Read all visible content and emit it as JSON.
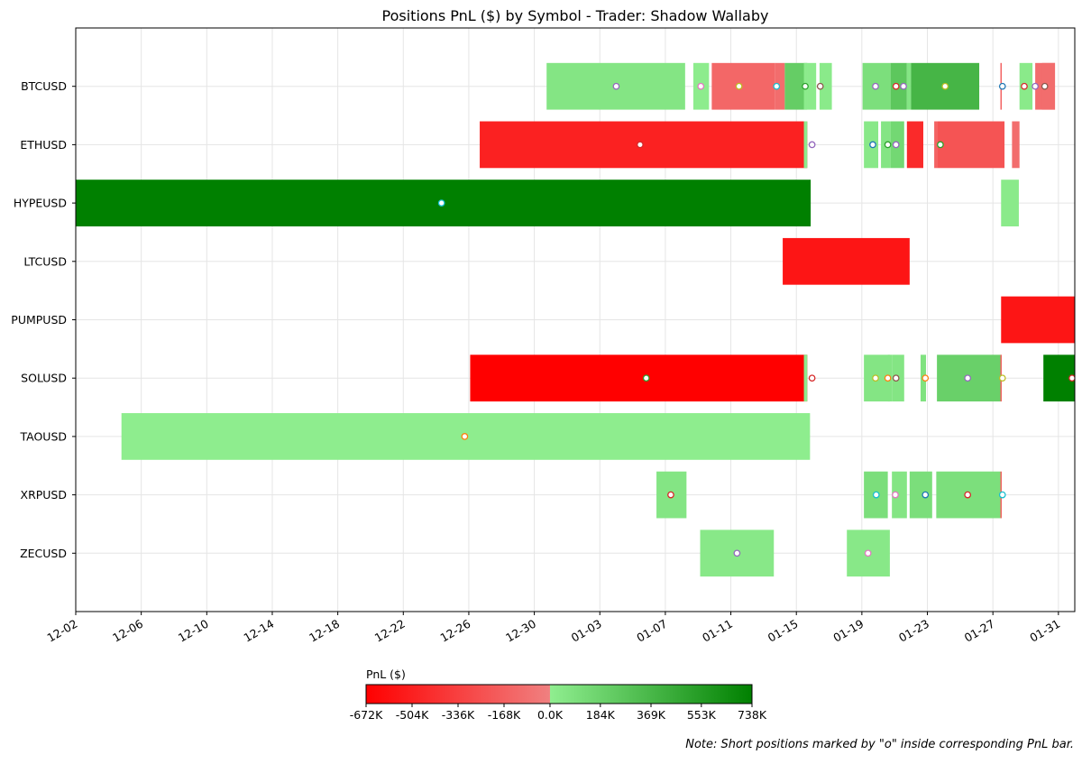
{
  "chart_data": {
    "type": "gantt",
    "title": "Positions PnL ($) by Symbol - Trader: Shadow Wallaby",
    "xlabel": "",
    "ylabel": "",
    "x_axis": {
      "min": "2025-12-02",
      "max": "2026-02-01",
      "tick_labels": [
        "12-02",
        "12-06",
        "12-10",
        "12-14",
        "12-18",
        "12-22",
        "12-26",
        "12-30",
        "01-03",
        "01-07",
        "01-11",
        "01-15",
        "01-19",
        "01-23",
        "01-27",
        "01-31"
      ],
      "tick_dates": [
        "2025-12-02",
        "2025-12-06",
        "2025-12-10",
        "2025-12-14",
        "2025-12-18",
        "2025-12-22",
        "2025-12-26",
        "2025-12-30",
        "2026-01-03",
        "2026-01-07",
        "2026-01-11",
        "2026-01-15",
        "2026-01-19",
        "2026-01-23",
        "2026-01-27",
        "2026-01-31"
      ]
    },
    "grid": true,
    "categories": [
      "BTCUSD",
      "ETHUSD",
      "HYPEUSD",
      "LTCUSD",
      "PUMPUSD",
      "SOLUSD",
      "TAOUSD",
      "XRPUSD",
      "ZECUSD"
    ],
    "colorbar": {
      "label": "PnL ($)",
      "min": -672000,
      "max": 738000,
      "tick_labels": [
        "-672K",
        "-504K",
        "-336K",
        "-168K",
        "0.0K",
        "184K",
        "369K",
        "553K",
        "738K"
      ],
      "tick_values": [
        -672000,
        -504000,
        -336000,
        -168000,
        0,
        184000,
        369000,
        553000,
        738000
      ],
      "neg_colors": [
        "#ff0000",
        "#f08080"
      ],
      "pos_colors": [
        "#90ee90",
        "#008000"
      ]
    },
    "positions": [
      {
        "symbol": "BTCUSD",
        "start": "2025-12-30 18:00",
        "end": "2026-01-08 05:00",
        "pnl": 60000,
        "short": true,
        "marker": "2026-01-04 00:00",
        "marker_color": "#9467bd"
      },
      {
        "symbol": "BTCUSD",
        "start": "2026-01-08 17:00",
        "end": "2026-01-09 16:00",
        "pnl": 15000,
        "short": true,
        "marker": "2026-01-09 04:00",
        "marker_color": "#e377c2"
      },
      {
        "symbol": "BTCUSD",
        "start": "2026-01-09 20:00",
        "end": "2026-01-13 17:00",
        "pnl": -130000,
        "short": true,
        "marker": "2026-01-11 12:00",
        "marker_color": "#bcbd22"
      },
      {
        "symbol": "BTCUSD",
        "start": "2026-01-13 17:00",
        "end": "2026-01-14 07:00",
        "pnl": -100000,
        "short": true,
        "marker": "2026-01-13 19:00",
        "marker_color": "#17becf"
      },
      {
        "symbol": "BTCUSD",
        "start": "2026-01-14 07:00",
        "end": "2026-01-15 16:00",
        "pnl": 220000,
        "short": true,
        "marker": "2026-01-15 13:00",
        "marker_color": "#2ca02c"
      },
      {
        "symbol": "BTCUSD",
        "start": "2026-01-15 11:00",
        "end": "2026-01-15 16:00",
        "pnl": 20000,
        "short": false
      },
      {
        "symbol": "BTCUSD",
        "start": "2026-01-15 16:00",
        "end": "2026-01-16 05:00",
        "pnl": 20000,
        "short": true,
        "marker": "2026-01-16 11:00",
        "marker_color": "#8c564b"
      },
      {
        "symbol": "BTCUSD",
        "start": "2026-01-16 10:00",
        "end": "2026-01-17 04:00",
        "pnl": 30000,
        "short": false
      },
      {
        "symbol": "BTCUSD",
        "start": "2026-01-19 01:00",
        "end": "2026-01-20 18:00",
        "pnl": 100000,
        "short": true,
        "marker": "2026-01-19 20:00",
        "marker_color": "#9467bd"
      },
      {
        "symbol": "BTCUSD",
        "start": "2026-01-20 18:00",
        "end": "2026-01-21 18:00",
        "pnl": 260000,
        "short": true,
        "marker": "2026-01-21 02:00",
        "marker_color": "#d62728"
      },
      {
        "symbol": "BTCUSD",
        "start": "2026-01-21 18:00",
        "end": "2026-01-22 00:00",
        "pnl": 60000,
        "short": true,
        "marker": "2026-01-21 13:00",
        "marker_color": "#9467bd"
      },
      {
        "symbol": "BTCUSD",
        "start": "2026-01-22 00:00",
        "end": "2026-01-26 04:00",
        "pnl": 380000,
        "short": true,
        "marker": "2026-01-24 02:00",
        "marker_color": "#bcbd22"
      },
      {
        "symbol": "BTCUSD",
        "start": "2026-01-27 11:00",
        "end": "2026-01-27 13:00",
        "pnl": -150000,
        "short": true,
        "marker": "2026-01-27 14:00",
        "marker_color": "#1f77b4"
      },
      {
        "symbol": "BTCUSD",
        "start": "2026-01-28 15:00",
        "end": "2026-01-29 10:00",
        "pnl": 30000,
        "short": true,
        "marker": "2026-01-28 22:00",
        "marker_color": "#d62728"
      },
      {
        "symbol": "BTCUSD",
        "start": "2026-01-29 14:00",
        "end": "2026-01-30 19:00",
        "pnl": -100000,
        "short": true,
        "marker": "2026-01-29 14:00",
        "marker_color": "#9467bd"
      },
      {
        "symbol": "BTCUSD",
        "start": "2026-01-30 00:00",
        "end": "2026-01-30 19:00",
        "pnl": -100000,
        "short": true,
        "marker": "2026-01-30 04:00",
        "marker_color": "#8c564b"
      },
      {
        "symbol": "ETHUSD",
        "start": "2025-12-26 16:00",
        "end": "2026-01-15 16:00",
        "pnl": -500000,
        "short": true,
        "marker": "2026-01-05 11:00",
        "marker_color": "#d62728"
      },
      {
        "symbol": "ETHUSD",
        "start": "2026-01-15 11:00",
        "end": "2026-01-15 16:00",
        "pnl": 20000,
        "short": true,
        "marker": "2026-01-15 23:00",
        "marker_color": "#9467bd"
      },
      {
        "symbol": "ETHUSD",
        "start": "2026-01-19 03:00",
        "end": "2026-01-20 00:00",
        "pnl": 40000,
        "short": true,
        "marker": "2026-01-19 16:00",
        "marker_color": "#1f77b4"
      },
      {
        "symbol": "ETHUSD",
        "start": "2026-01-20 04:00",
        "end": "2026-01-20 18:00",
        "pnl": 60000,
        "short": true,
        "marker": "2026-01-20 14:00",
        "marker_color": "#2ca02c"
      },
      {
        "symbol": "ETHUSD",
        "start": "2026-01-20 18:00",
        "end": "2026-01-21 14:00",
        "pnl": 150000,
        "short": true,
        "marker": "2026-01-21 02:00",
        "marker_color": "#9467bd"
      },
      {
        "symbol": "ETHUSD",
        "start": "2026-01-21 18:00",
        "end": "2026-01-22 18:00",
        "pnl": -450000,
        "short": false
      },
      {
        "symbol": "ETHUSD",
        "start": "2026-01-23 10:00",
        "end": "2026-01-23 14:00",
        "pnl": -150000,
        "short": true,
        "marker": "2026-01-23 19:00",
        "marker_color": "#2ca02c"
      },
      {
        "symbol": "ETHUSD",
        "start": "2026-01-23 14:00",
        "end": "2026-01-27 17:00",
        "pnl": -230000,
        "short": false
      },
      {
        "symbol": "ETHUSD",
        "start": "2026-01-28 04:00",
        "end": "2026-01-28 15:00",
        "pnl": -100000,
        "short": false
      },
      {
        "symbol": "HYPEUSD",
        "start": "2025-12-02 00:00",
        "end": "2026-01-15 21:00",
        "pnl": 738000,
        "short": true,
        "marker": "2025-12-24 08:00",
        "marker_color": "#17becf"
      },
      {
        "symbol": "HYPEUSD",
        "start": "2026-01-27 12:00",
        "end": "2026-01-28 14:00",
        "pnl": 30000,
        "short": false
      },
      {
        "symbol": "LTCUSD",
        "start": "2026-01-14 04:00",
        "end": "2026-01-21 22:00",
        "pnl": -560000,
        "short": false
      },
      {
        "symbol": "PUMPUSD",
        "start": "2026-01-27 12:00",
        "end": "2026-02-01 00:00",
        "pnl": -560000,
        "short": false
      },
      {
        "symbol": "SOLUSD",
        "start": "2025-12-26 02:00",
        "end": "2026-01-15 16:00",
        "pnl": -672000,
        "short": true,
        "marker": "2026-01-05 20:00",
        "marker_color": "#2ca02c"
      },
      {
        "symbol": "SOLUSD",
        "start": "2026-01-15 11:00",
        "end": "2026-01-15 16:00",
        "pnl": 20000,
        "short": true,
        "marker": "2026-01-15 23:00",
        "marker_color": "#d62728"
      },
      {
        "symbol": "SOLUSD",
        "start": "2026-01-19 03:00",
        "end": "2026-01-20 17:00",
        "pnl": 60000,
        "short": true,
        "marker": "2026-01-19 20:00",
        "marker_color": "#bcbd22"
      },
      {
        "symbol": "SOLUSD",
        "start": "2026-01-20 14:00",
        "end": "2026-01-20 20:00",
        "pnl": 60000,
        "short": true,
        "marker": "2026-01-20 14:00",
        "marker_color": "#ff7f0e"
      },
      {
        "symbol": "SOLUSD",
        "start": "2026-01-20 20:00",
        "end": "2026-01-21 14:00",
        "pnl": 60000,
        "short": true,
        "marker": "2026-01-21 02:00",
        "marker_color": "#8c564b"
      },
      {
        "symbol": "SOLUSD",
        "start": "2026-01-22 14:00",
        "end": "2026-01-22 22:00",
        "pnl": 80000,
        "short": true,
        "marker": "2026-01-22 21:00",
        "marker_color": "#ff7f0e"
      },
      {
        "symbol": "SOLUSD",
        "start": "2026-01-23 14:00",
        "end": "2026-01-27 11:00",
        "pnl": 200000,
        "short": true,
        "marker": "2026-01-25 11:00",
        "marker_color": "#9467bd"
      },
      {
        "symbol": "SOLUSD",
        "start": "2026-01-27 11:00",
        "end": "2026-01-27 13:00",
        "pnl": -150000,
        "short": true,
        "marker": "2026-01-27 14:00",
        "marker_color": "#bcbd22"
      },
      {
        "symbol": "SOLUSD",
        "start": "2026-01-30 02:00",
        "end": "2026-02-01 00:00",
        "pnl": 738000,
        "short": true,
        "marker": "2026-01-31 20:00",
        "marker_color": "#d62728"
      },
      {
        "symbol": "TAOUSD",
        "start": "2025-12-04 19:00",
        "end": "2026-01-15 20:00",
        "pnl": 10000,
        "short": true,
        "marker": "2025-12-25 18:00",
        "marker_color": "#ff7f0e"
      },
      {
        "symbol": "XRPUSD",
        "start": "2026-01-06 11:00",
        "end": "2026-01-08 07:00",
        "pnl": 60000,
        "short": true,
        "marker": "2026-01-07 08:00",
        "marker_color": "#d62728"
      },
      {
        "symbol": "XRPUSD",
        "start": "2026-01-19 03:00",
        "end": "2026-01-20 14:00",
        "pnl": 110000,
        "short": true,
        "marker": "2026-01-19 21:00",
        "marker_color": "#17becf"
      },
      {
        "symbol": "XRPUSD",
        "start": "2026-01-20 20:00",
        "end": "2026-01-21 18:00",
        "pnl": 60000,
        "short": true,
        "marker": "2026-01-21 01:00",
        "marker_color": "#e377c2"
      },
      {
        "symbol": "XRPUSD",
        "start": "2026-01-21 22:00",
        "end": "2026-01-23 07:00",
        "pnl": 110000,
        "short": true,
        "marker": "2026-01-22 21:00",
        "marker_color": "#1f77b4"
      },
      {
        "symbol": "XRPUSD",
        "start": "2026-01-23 13:00",
        "end": "2026-01-27 11:00",
        "pnl": 100000,
        "short": true,
        "marker": "2026-01-25 11:00",
        "marker_color": "#d62728"
      },
      {
        "symbol": "XRPUSD",
        "start": "2026-01-27 11:00",
        "end": "2026-01-27 13:00",
        "pnl": -150000,
        "short": true,
        "marker": "2026-01-27 14:00",
        "marker_color": "#17becf"
      },
      {
        "symbol": "ZECUSD",
        "start": "2026-01-09 03:00",
        "end": "2026-01-13 15:00",
        "pnl": 40000,
        "short": true,
        "marker": "2026-01-11 09:00",
        "marker_color": "#9467bd"
      },
      {
        "symbol": "ZECUSD",
        "start": "2026-01-18 02:00",
        "end": "2026-01-20 17:00",
        "pnl": 40000,
        "short": true,
        "marker": "2026-01-19 09:00",
        "marker_color": "#e377c2"
      }
    ]
  },
  "note": "Note: Short positions marked by \"o\" inside corresponding PnL bar."
}
